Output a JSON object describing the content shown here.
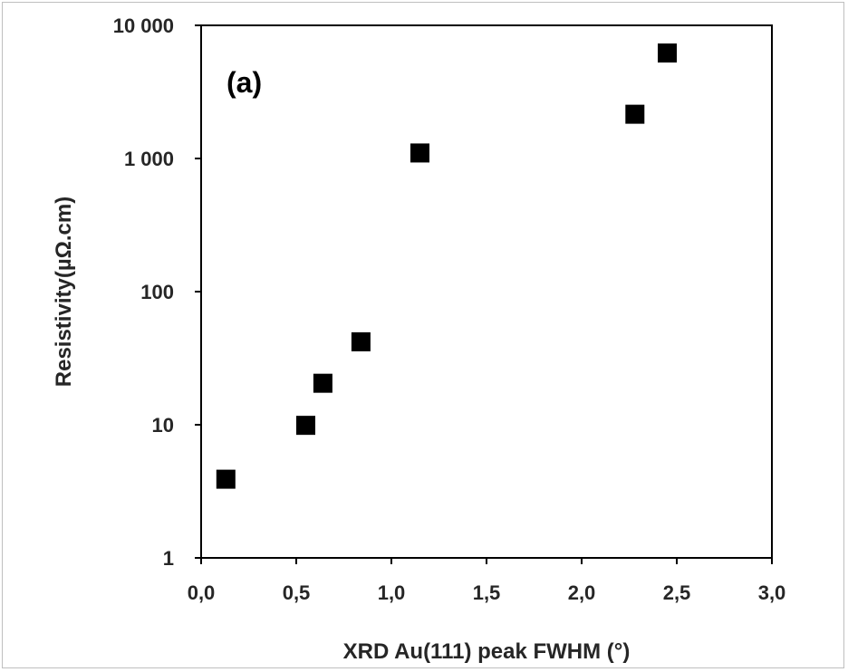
{
  "chart_data": {
    "type": "scatter",
    "annotation": "(a)",
    "xlabel": "XRD Au(111) peak FWHM  (°)",
    "ylabel": "Resistivity(µΩ.cm)",
    "xlim": [
      0,
      3
    ],
    "ylim": [
      1,
      10000
    ],
    "yscale": "log",
    "grid": false,
    "legend": "none",
    "x_ticks": [
      "0,0",
      "0,5",
      "1,0",
      "1,5",
      "2,0",
      "2,5",
      "3,0"
    ],
    "y_ticks": [
      "1",
      "10",
      "100",
      "1 000",
      "10 000"
    ],
    "marker_color": "#000000",
    "series": [
      {
        "x": [
          0.13,
          0.55,
          0.64,
          0.84,
          1.15,
          2.28,
          2.45
        ],
        "y": [
          3.9,
          9.9,
          20.5,
          42.0,
          1100,
          2150,
          6200
        ]
      }
    ]
  }
}
